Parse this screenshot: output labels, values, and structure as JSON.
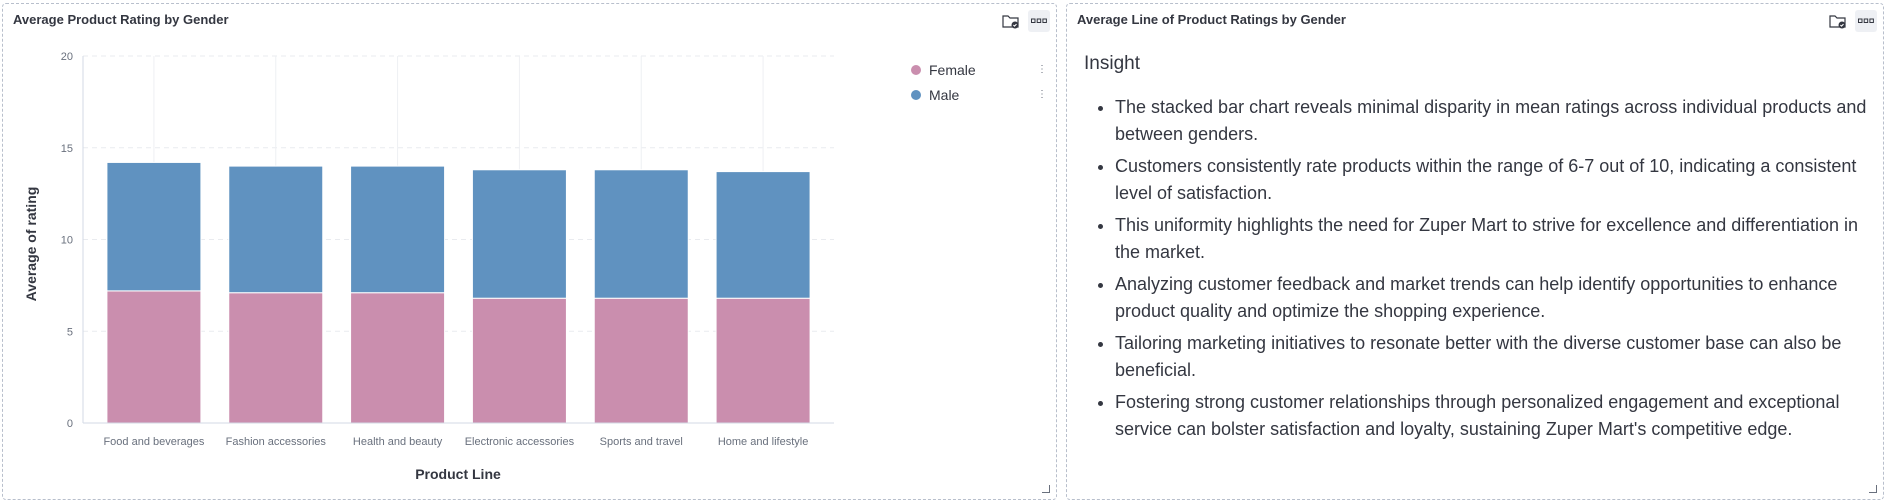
{
  "left_panel": {
    "title": "Average Product Rating by Gender"
  },
  "right_panel": {
    "title": "Average Line of Product Ratings by Gender",
    "heading": "Insight",
    "bullets": [
      "The stacked bar chart reveals minimal disparity in mean ratings across individual products and between genders.",
      "Customers consistently rate products within the range of 6-7 out of 10, indicating a consistent level of satisfaction.",
      "This uniformity highlights the need for Zuper Mart to strive for excellence and differentiation in the market.",
      "Analyzing customer feedback and market trends can help identify opportunities to enhance product quality and optimize the shopping experience.",
      "Tailoring marketing initiatives to resonate better with the diverse customer base can also be beneficial.",
      "Fostering strong customer relationships through personalized engagement and exceptional service can bolster satisfaction and loyalty, sustaining Zuper Mart's competitive edge."
    ]
  },
  "icons": {
    "save": "folder-check-icon",
    "menu": "more-horizontal-icon",
    "resize": "resize-corner-icon"
  },
  "chart_data": {
    "type": "bar",
    "stacked": true,
    "title": "",
    "xlabel": "Product Line",
    "ylabel": "Average of rating",
    "ylim": [
      0,
      20
    ],
    "yticks": [
      0,
      5,
      10,
      15,
      20
    ],
    "categories": [
      "Food and beverages",
      "Fashion accessories",
      "Health and beauty",
      "Electronic accessories",
      "Sports and travel",
      "Home and lifestyle"
    ],
    "series": [
      {
        "name": "Female",
        "color": "#ca8eae",
        "values": [
          7.2,
          7.1,
          7.1,
          6.8,
          6.8,
          6.8
        ]
      },
      {
        "name": "Male",
        "color": "#6092c0",
        "values": [
          7.0,
          6.9,
          6.9,
          7.0,
          7.0,
          6.9
        ]
      }
    ],
    "grid": true,
    "legend": "top-right"
  }
}
